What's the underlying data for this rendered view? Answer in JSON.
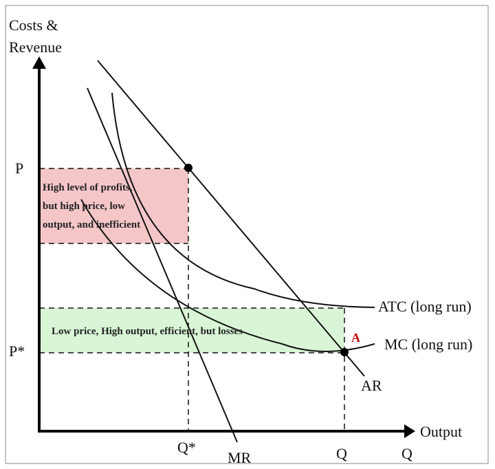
{
  "axes": {
    "y_label_line1": "Costs &",
    "y_label_line2": "Revenue",
    "x_label": "Output"
  },
  "ticks": {
    "p": "P",
    "p_star": "P*",
    "q_star": "Q*",
    "q": "Q",
    "q_axis": "Q"
  },
  "curves": {
    "atc": "ATC (long run)",
    "mc": "MC (long run)",
    "ar": "AR",
    "mr": "MR"
  },
  "regions": {
    "monopoly": {
      "line1": "High level of profits,",
      "line2": "but high price, low",
      "line3": "output, and inefficient",
      "color": "#f4c6c8"
    },
    "competitive": {
      "text": "Low price, High output, efficient, but losses",
      "color": "#d8f5d6"
    }
  },
  "point_label": "A",
  "colors": {
    "point_label": "#c00000",
    "curve": "#111111"
  }
}
